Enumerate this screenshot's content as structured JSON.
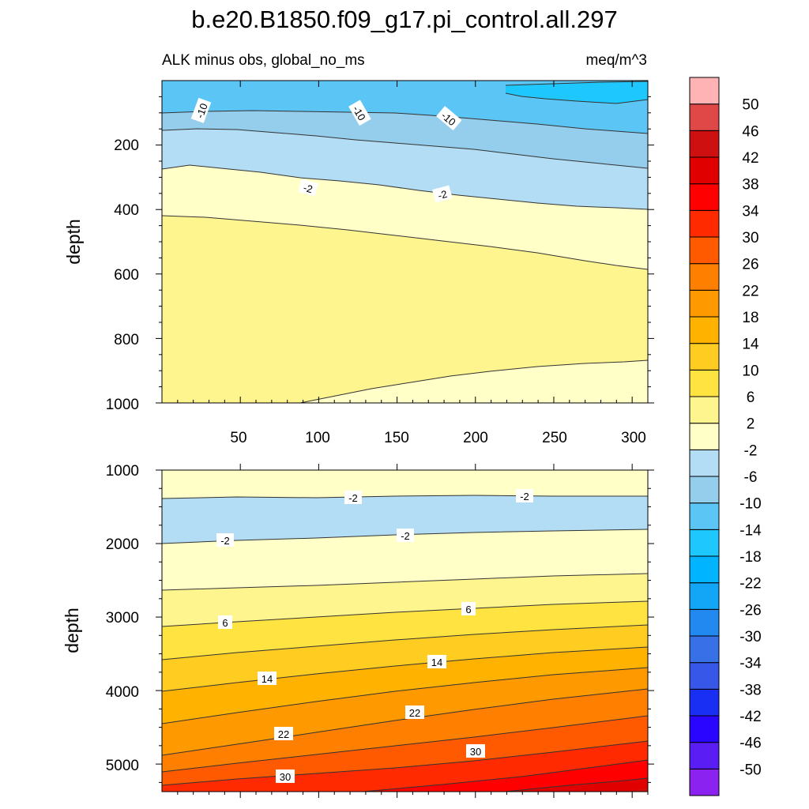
{
  "title": "b.e20.B1850.f09_g17.pi_control.all.297",
  "subtitle_left": "ALK minus obs, global_no_ms",
  "subtitle_right": "meq/m^3",
  "chart_data": {
    "type": "heatmap",
    "title": "b.e20.B1850.f09_g17.pi_control.all.297",
    "field": "ALK minus obs, global_no_ms",
    "units": "meq/m^3",
    "x": {
      "range": [
        0,
        310
      ],
      "ticks": [
        50,
        100,
        150,
        200,
        250,
        300
      ],
      "tick_labels": [
        "50",
        "100",
        "150",
        "200",
        "250",
        "300"
      ]
    },
    "colorbar": {
      "labels": [
        "-50",
        "-46",
        "-42",
        "-38",
        "-34",
        "-30",
        "-26",
        "-22",
        "-18",
        "-14",
        "-10",
        "-6",
        "-2",
        "2",
        "6",
        "10",
        "14",
        "18",
        "22",
        "26",
        "30",
        "34",
        "38",
        "42",
        "46",
        "50"
      ],
      "colors": [
        "#8b22f0",
        "#5a1ef5",
        "#2a05ff",
        "#1a2ff4",
        "#3757e8",
        "#3870e8",
        "#2189ef",
        "#13a5f6",
        "#00b4ff",
        "#1ec8ff",
        "#5bc6f5",
        "#95cdec",
        "#b3ddf4",
        "#ffffc7",
        "#fff58f",
        "#ffe340",
        "#ffcc22",
        "#ffb300",
        "#ff9900",
        "#ff7f00",
        "#ff5a00",
        "#ff2a00",
        "#ff0000",
        "#e00000",
        "#cf1010",
        "#e04848",
        "#ffb3b5"
      ]
    },
    "panels": [
      {
        "name": "upper",
        "ylabel": "depth",
        "ylim": [
          1000,
          0
        ],
        "y_ticks": [
          "200",
          "400",
          "600",
          "800",
          "1000"
        ],
        "contour_labels": [
          "-10",
          "-10",
          "-10",
          "-2",
          "-2"
        ]
      },
      {
        "name": "lower",
        "ylabel": "depth",
        "ylim": [
          5375,
          1000
        ],
        "y_ticks": [
          "1000",
          "2000",
          "3000",
          "4000",
          "5000"
        ],
        "contour_labels": [
          "-2",
          "-2",
          "-2",
          "-2",
          "6",
          "6",
          "14",
          "14",
          "22",
          "22",
          "30",
          "30"
        ]
      }
    ]
  }
}
